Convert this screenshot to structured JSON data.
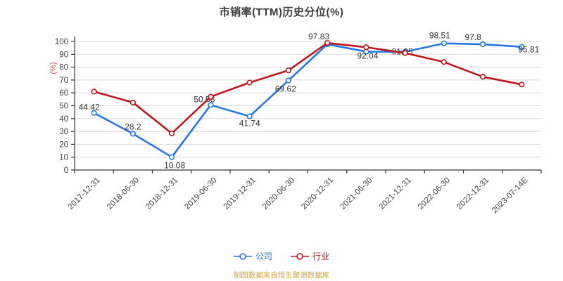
{
  "title": "市销率(TTM)历史分位(%)",
  "footer": {
    "source_note": "制图数据来自恒生聚源数据库",
    "color": "#D4A43C"
  },
  "legend": {
    "items": [
      {
        "label": "公司",
        "color": "#2577E8"
      },
      {
        "label": "行业",
        "color": "#C0151C"
      }
    ]
  },
  "chart_data": {
    "type": "line",
    "title": "市销率(TTM)历史分位(%)",
    "categories": [
      "2017-12-31",
      "2018-06-30",
      "2018-12-31",
      "2019-06-30",
      "2019-12-31",
      "2020-06-30",
      "2020-12-31",
      "2021-06-30",
      "2021-12-31",
      "2022-06-30",
      "2022-12-31",
      "2023-07-14E"
    ],
    "series": [
      {
        "name": "公司",
        "color": "#2577E8",
        "values": [
          44.42,
          28.2,
          10.08,
          50.58,
          41.74,
          69.62,
          97.83,
          92.04,
          91.95,
          98.51,
          97.8,
          95.81
        ],
        "show_labels": true,
        "label_offsets": [
          [
            8,
            -4
          ],
          [
            0,
            -6
          ],
          [
            4,
            16
          ],
          [
            6,
            -4
          ],
          [
            0,
            14
          ],
          [
            -4,
            16
          ],
          [
            -12,
            -7
          ],
          [
            2,
            10
          ],
          [
            -4,
            4
          ],
          [
            -6,
            -7
          ],
          [
            -14,
            -6
          ],
          [
            10,
            8
          ]
        ],
        "label_anchors": [
          "end",
          "middle",
          "middle",
          "end",
          "middle",
          "middle",
          "middle",
          "middle",
          "middle",
          "middle",
          "middle",
          "middle"
        ]
      },
      {
        "name": "行业",
        "color": "#C0151C",
        "values": [
          61,
          52.5,
          28.5,
          57,
          68,
          77.5,
          98.8,
          95.5,
          91,
          84,
          72.5,
          66.5
        ],
        "show_labels": false
      }
    ],
    "xlabel": "",
    "ylabel": "(%)",
    "ylabel_color": "#DD4B42",
    "ylim": [
      0,
      100
    ],
    "ytick_step": 10,
    "grid": true,
    "grid_color": "#D8D8D8",
    "axis_color": "#333333",
    "tick_text_color": "#444444",
    "data_label_color": "#333333",
    "legend_position": "bottom"
  }
}
